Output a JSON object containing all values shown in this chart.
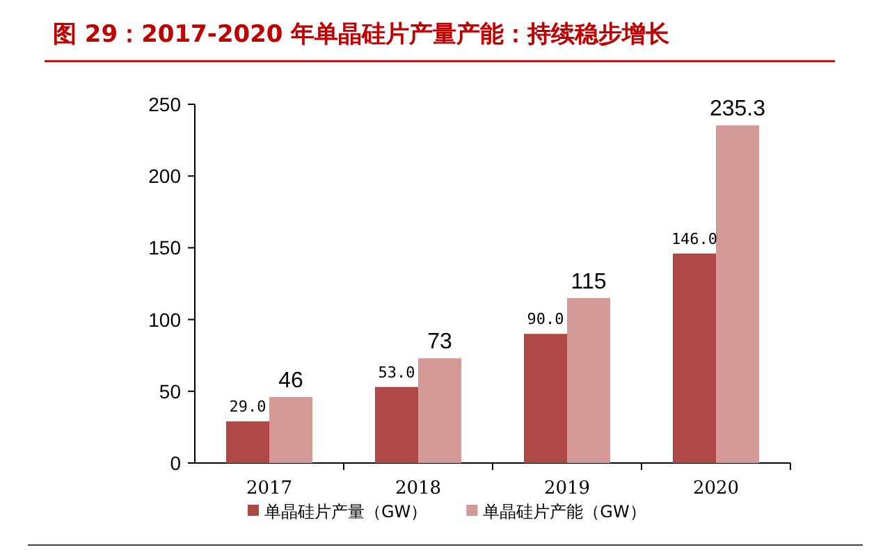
{
  "chart_data": {
    "type": "bar",
    "title": "图 29：2017-2020 年单晶硅片产量产能：持续稳步增长",
    "categories": [
      "2017",
      "2018",
      "2019",
      "2020"
    ],
    "series": [
      {
        "name": "单晶硅片产量（GW）",
        "color": "#ad4846",
        "values": [
          29.0,
          53.0,
          90.0,
          146.0
        ],
        "value_labels": [
          "29.0",
          "53.0",
          "90.0",
          "146.0"
        ]
      },
      {
        "name": "单晶硅片产能（GW）",
        "color": "#d49896",
        "values": [
          46,
          73,
          115,
          235.3
        ],
        "value_labels": [
          "46",
          "73",
          "115",
          "235.3"
        ]
      }
    ],
    "ylim": [
      0,
      250
    ],
    "yticks": [
      0,
      50,
      100,
      150,
      200,
      250
    ],
    "legend": "bottom"
  }
}
